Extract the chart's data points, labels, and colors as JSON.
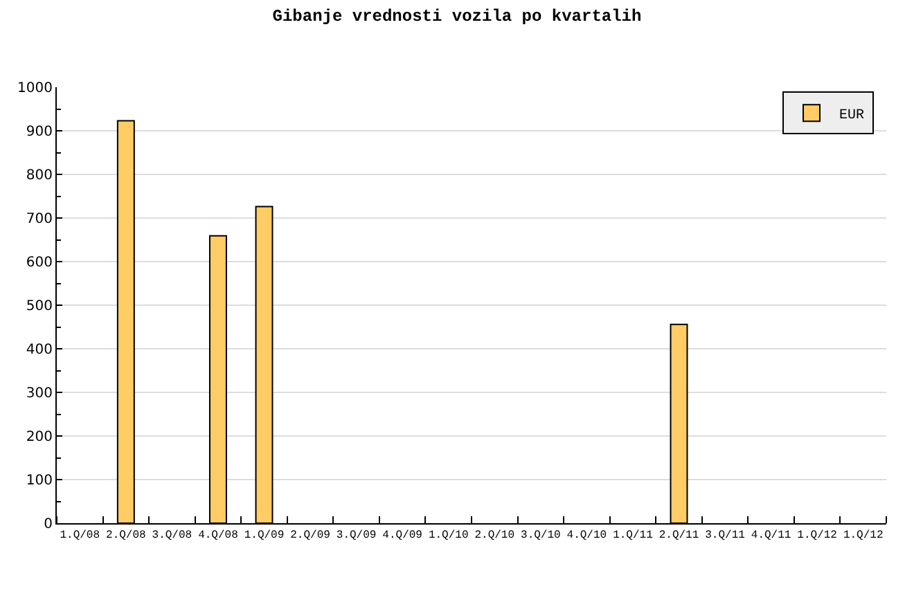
{
  "chart_data": {
    "type": "bar",
    "title": "Gibanje vrednosti vozila po kvartalih",
    "categories": [
      "1.Q/08",
      "2.Q/08",
      "3.Q/08",
      "4.Q/08",
      "1.Q/09",
      "2.Q/09",
      "3.Q/09",
      "4.Q/09",
      "1.Q/10",
      "2.Q/10",
      "3.Q/10",
      "4.Q/10",
      "1.Q/11",
      "2.Q/11",
      "3.Q/11",
      "4.Q/11",
      "1.Q/12",
      "1.Q/12"
    ],
    "series": [
      {
        "name": "EUR",
        "color": "#ffcc66",
        "values": [
          null,
          923,
          null,
          659,
          726,
          null,
          null,
          null,
          null,
          null,
          null,
          null,
          null,
          456,
          null,
          null,
          null,
          null
        ]
      }
    ],
    "ylim": [
      0,
      1000
    ],
    "yticks": [
      0,
      {
        "value": 50,
        "label": null
      },
      100,
      {
        "value": 150,
        "label": null
      },
      200,
      {
        "value": 250,
        "label": null
      },
      300,
      {
        "value": 350,
        "label": null
      },
      400,
      {
        "value": 450,
        "label": null
      },
      500,
      {
        "value": 550,
        "label": null
      },
      600,
      {
        "value": 650,
        "label": null
      },
      700,
      {
        "value": 750,
        "label": null
      },
      800,
      {
        "value": 850,
        "label": null
      },
      900,
      {
        "value": 950,
        "label": null
      },
      1000
    ],
    "grid": "y",
    "legend": "top right"
  }
}
